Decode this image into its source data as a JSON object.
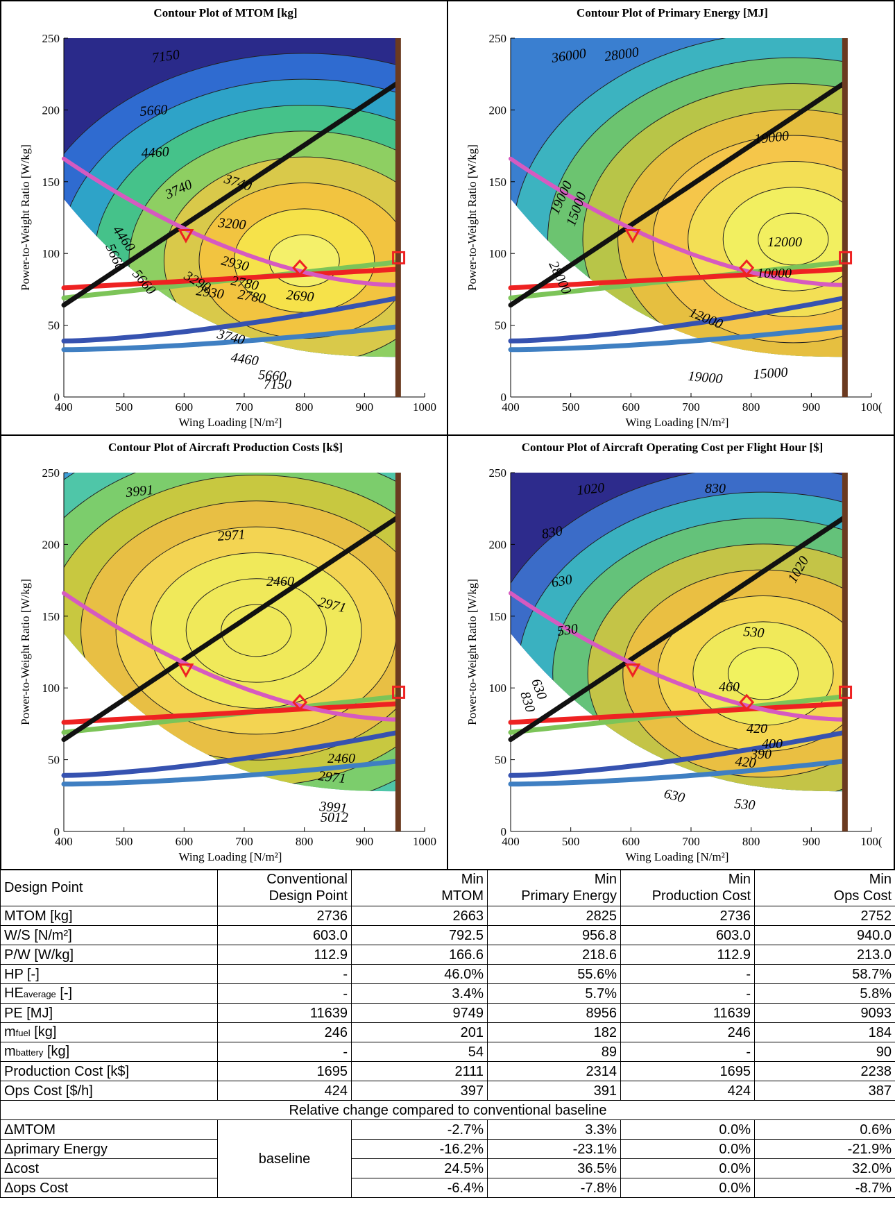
{
  "chart_data": [
    {
      "type": "contour",
      "title": "Contour Plot of MTOM [kg]",
      "xlabel": "Wing Loading [N/m²]",
      "ylabel": "Power-to-Weight Ratio [W/kg]",
      "xlim": [
        400,
        1000
      ],
      "ylim": [
        0,
        250
      ],
      "xticks": [
        "400",
        "500",
        "600",
        "700",
        "800",
        "900",
        "1000"
      ],
      "yticks": [
        "0",
        "50",
        "100",
        "150",
        "200",
        "250"
      ],
      "contour_labels": [
        "7150",
        "5660",
        "4460",
        "3740",
        "3740",
        "3200",
        "2930",
        "2780",
        "3290",
        "2930",
        "2780",
        "2690",
        "3740",
        "4460",
        "5660",
        "7150",
        "4460",
        "5660",
        "5660"
      ],
      "levels": [
        7150,
        5660,
        4460,
        3740,
        3200,
        2930,
        2780,
        2690
      ],
      "markers": [
        {
          "shape": "triangle",
          "x": 603,
          "y": 112.9
        },
        {
          "shape": "diamond",
          "x": 792.5,
          "y": 90
        },
        {
          "shape": "square",
          "x": 956.8,
          "y": 97
        }
      ]
    },
    {
      "type": "contour",
      "title": "Contour Plot of Primary Energy [MJ]",
      "xlabel": "Wing Loading [N/m²]",
      "ylabel": "Power-to-Weight Ratio [W/kg]",
      "xlim": [
        400,
        1000
      ],
      "ylim": [
        0,
        250
      ],
      "xticks": [
        "400",
        "500",
        "600",
        "700",
        "800",
        "900",
        "100("
      ],
      "yticks": [
        "0",
        "50",
        "100",
        "150",
        "200",
        "250"
      ],
      "contour_labels": [
        "36000",
        "28000",
        "19000",
        "19000",
        "15000",
        "12000",
        "10000",
        "28000",
        "12000",
        "19000",
        "15000"
      ],
      "levels": [
        36000,
        28000,
        19000,
        15000,
        12000,
        10000
      ],
      "markers": [
        {
          "shape": "triangle",
          "x": 603,
          "y": 112.9
        },
        {
          "shape": "diamond",
          "x": 792.5,
          "y": 90
        },
        {
          "shape": "square",
          "x": 956.8,
          "y": 97
        }
      ]
    },
    {
      "type": "contour",
      "title": "Contour Plot of Aircraft Production Costs [k$]",
      "xlabel": "Wing Loading [N/m²]",
      "ylabel": "Power-to-Weight Ratio [W/kg]",
      "xlim": [
        400,
        1000
      ],
      "ylim": [
        0,
        250
      ],
      "xticks": [
        "400",
        "500",
        "600",
        "700",
        "800",
        "900",
        "1000"
      ],
      "yticks": [
        "0",
        "50",
        "100",
        "150",
        "200",
        "250"
      ],
      "contour_labels": [
        "3991",
        "2971",
        "2460",
        "2971",
        "2460",
        "2971",
        "3991",
        "5012"
      ],
      "levels": [
        5012,
        3991,
        2971,
        2460
      ],
      "markers": [
        {
          "shape": "triangle",
          "x": 603,
          "y": 112.9
        },
        {
          "shape": "diamond",
          "x": 792.5,
          "y": 90
        },
        {
          "shape": "square",
          "x": 956.8,
          "y": 97
        }
      ]
    },
    {
      "type": "contour",
      "title": "Contour Plot of Aircraft Operating Cost per Flight Hour [$]",
      "xlabel": "Wing Loading [N/m²]",
      "ylabel": "Power-to-Weight Ratio [W/kg]",
      "xlim": [
        400,
        1000
      ],
      "ylim": [
        0,
        250
      ],
      "xticks": [
        "400",
        "500",
        "600",
        "700",
        "800",
        "900",
        "100("
      ],
      "yticks": [
        "0",
        "50",
        "100",
        "150",
        "200",
        "250"
      ],
      "contour_labels": [
        "1020",
        "830",
        "830",
        "630",
        "530",
        "530",
        "460",
        "420",
        "400",
        "390",
        "420",
        "630",
        "530",
        "630",
        "830",
        "1020"
      ],
      "levels": [
        1020,
        830,
        630,
        530,
        460,
        420,
        400,
        390
      ],
      "markers": [
        {
          "shape": "triangle",
          "x": 603,
          "y": 112.9
        },
        {
          "shape": "diamond",
          "x": 792.5,
          "y": 90
        },
        {
          "shape": "square",
          "x": 956.8,
          "y": 97
        }
      ]
    }
  ],
  "colors": {
    "constraint_black": "#111111",
    "constraint_magenta": "#d65ac0",
    "constraint_red": "#ee2222",
    "constraint_green": "#7cc458",
    "constraint_blue": "#3652b0",
    "constraint_lightblue": "#3f7fc2",
    "wall_brown": "#6b3a20",
    "marker_red": "#ee2222"
  },
  "table": {
    "header": [
      "Design Point",
      "Conventional Design Point",
      "Min MTOM",
      "Min Primary Energy",
      "Min Production Cost",
      "Min Ops Cost"
    ],
    "header_lines": [
      [
        "Design Point"
      ],
      [
        "Conventional",
        "Design Point"
      ],
      [
        "Min",
        "MTOM"
      ],
      [
        "Min",
        "Primary Energy"
      ],
      [
        "Min",
        "Production Cost"
      ],
      [
        "Min",
        "Ops Cost"
      ]
    ],
    "rows": [
      {
        "label": "MTOM [kg]",
        "sub": "",
        "suffix": "",
        "values": [
          "2736",
          "2663",
          "2825",
          "2736",
          "2752"
        ]
      },
      {
        "label": "W/S [N/m²]",
        "sub": "",
        "suffix": "",
        "values": [
          "603.0",
          "792.5",
          "956.8",
          "603.0",
          "940.0"
        ]
      },
      {
        "label": "P/W [W/kg]",
        "sub": "",
        "suffix": "",
        "values": [
          "112.9",
          "166.6",
          "218.6",
          "112.9",
          "213.0"
        ]
      },
      {
        "label": "HP [-]",
        "sub": "",
        "suffix": "",
        "values": [
          "-",
          "46.0%",
          "55.6%",
          "-",
          "58.7%"
        ]
      },
      {
        "label": "HE",
        "sub": "average",
        "suffix": " [-]",
        "values": [
          "-",
          "3.4%",
          "5.7%",
          "-",
          "5.8%"
        ]
      },
      {
        "label": "PE [MJ]",
        "sub": "",
        "suffix": "",
        "values": [
          "11639",
          "9749",
          "8956",
          "11639",
          "9093"
        ]
      },
      {
        "label": "m",
        "sub": "fuel",
        "suffix": " [kg]",
        "values": [
          "246",
          "201",
          "182",
          "246",
          "184"
        ]
      },
      {
        "label": "m",
        "sub": "battery",
        "suffix": " [kg]",
        "values": [
          "-",
          "54",
          "89",
          "-",
          "90"
        ]
      },
      {
        "label": "Production Cost [k$]",
        "sub": "",
        "suffix": "",
        "values": [
          "1695",
          "2111",
          "2314",
          "1695",
          "2238"
        ]
      },
      {
        "label": "Ops Cost [$/h]",
        "sub": "",
        "suffix": "",
        "values": [
          "424",
          "397",
          "391",
          "424",
          "387"
        ]
      }
    ],
    "relative_title": "Relative change compared to conventional baseline",
    "baseline_label": "baseline",
    "relative_rows": [
      {
        "label": "ΔMTOM",
        "values": [
          "-2.7%",
          "3.3%",
          "0.0%",
          "0.6%"
        ]
      },
      {
        "label": "Δprimary Energy",
        "values": [
          "-16.2%",
          "-23.1%",
          "0.0%",
          "-21.9%"
        ]
      },
      {
        "label": "Δcost",
        "values": [
          "24.5%",
          "36.5%",
          "0.0%",
          "32.0%"
        ]
      },
      {
        "label": "Δops Cost",
        "values": [
          "-6.4%",
          "-7.8%",
          "0.0%",
          "-8.7%"
        ]
      }
    ]
  }
}
